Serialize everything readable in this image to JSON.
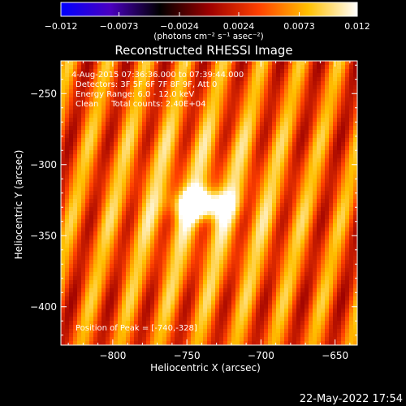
{
  "chart_data": {
    "type": "heatmap",
    "title": "Reconstructed RHESSI Image",
    "xlabel": "Heliocentric X (arcsec)",
    "ylabel": "Heliocentric Y (arcsec)",
    "xlim": [
      -835,
      -635
    ],
    "ylim": [
      -427,
      -227
    ],
    "x_ticks": [
      -800,
      -750,
      -700,
      -650
    ],
    "x_tick_labels": [
      "−800",
      "−750",
      "−700",
      "−650"
    ],
    "y_ticks": [
      -250,
      -300,
      -350,
      -400
    ],
    "y_tick_labels": [
      "−250",
      "−300",
      "−350",
      "−400"
    ],
    "colorbar": {
      "min": -0.012,
      "max": 0.012,
      "ticks": [
        -0.012,
        -0.0073,
        -0.0024,
        0.0024,
        0.0073,
        0.012
      ],
      "tick_labels": [
        "−0.012",
        "−0.0073",
        "−0.0024",
        "0.0024",
        "0.0073",
        "0.012"
      ],
      "unit_label": "(photons cm⁻² s⁻¹ asec⁻²)",
      "colormap": [
        "#0000ff",
        "#4a00c0",
        "#000000",
        "#9c0000",
        "#ff4000",
        "#ffc000",
        "#ffffff"
      ]
    },
    "annotations": {
      "time_range": "4-Aug-2015 07:36:36.000 to 07:39:44.000",
      "detectors": "Detectors: 3F 5F 6F 7F 8F 9F, Att 0",
      "energy": "Energy Range: 6.0 - 12.0 keV",
      "method": "Clean     Total counts: 2.40E+04",
      "peak": "Position of Peak = [-740,-328]"
    },
    "source": {
      "peak_x": -740,
      "peak_y": -328,
      "peak_value": 0.012,
      "sigma_x": 12,
      "sigma_y": 7
    },
    "background": {
      "level": 0.0045,
      "stripe_amplitude": 0.0045,
      "stripe_period": 26,
      "stripe_tilt": 0.22
    }
  },
  "timestamp": "22-May-2022 17:54"
}
